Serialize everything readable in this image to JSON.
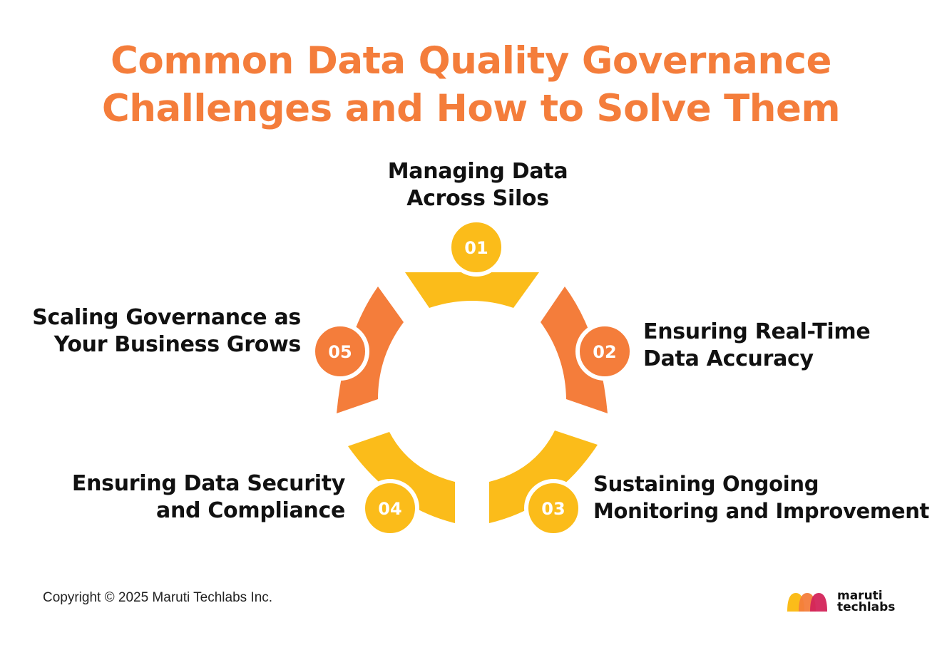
{
  "title": {
    "line1": "Common Data Quality Governance",
    "line2": "Challenges and How to Solve Them"
  },
  "steps": [
    {
      "number": "01",
      "label_line1": "Managing Data",
      "label_line2": "Across Silos",
      "color": "#FBBC1A"
    },
    {
      "number": "02",
      "label_line1": "Ensuring Real-Time",
      "label_line2": "Data Accuracy",
      "color": "#F47D3B"
    },
    {
      "number": "03",
      "label_line1": "Sustaining Ongoing",
      "label_line2": "Monitoring and Improvement",
      "color": "#FBBC1A"
    },
    {
      "number": "04",
      "label_line1": "Ensuring Data Security",
      "label_line2": "and Compliance",
      "color": "#FBBC1A"
    },
    {
      "number": "05",
      "label_line1": "Scaling Governance as",
      "label_line2": "Your Business Grows",
      "color": "#F47D3B"
    }
  ],
  "colors": {
    "title": "#F47D3B",
    "yellow": "#FBBC1A",
    "orange": "#F47D3B"
  },
  "footer": {
    "copyright": "Copyright © 2025 Maruti Techlabs Inc."
  },
  "logo": {
    "line1": "maruti",
    "line2": "techlabs"
  }
}
